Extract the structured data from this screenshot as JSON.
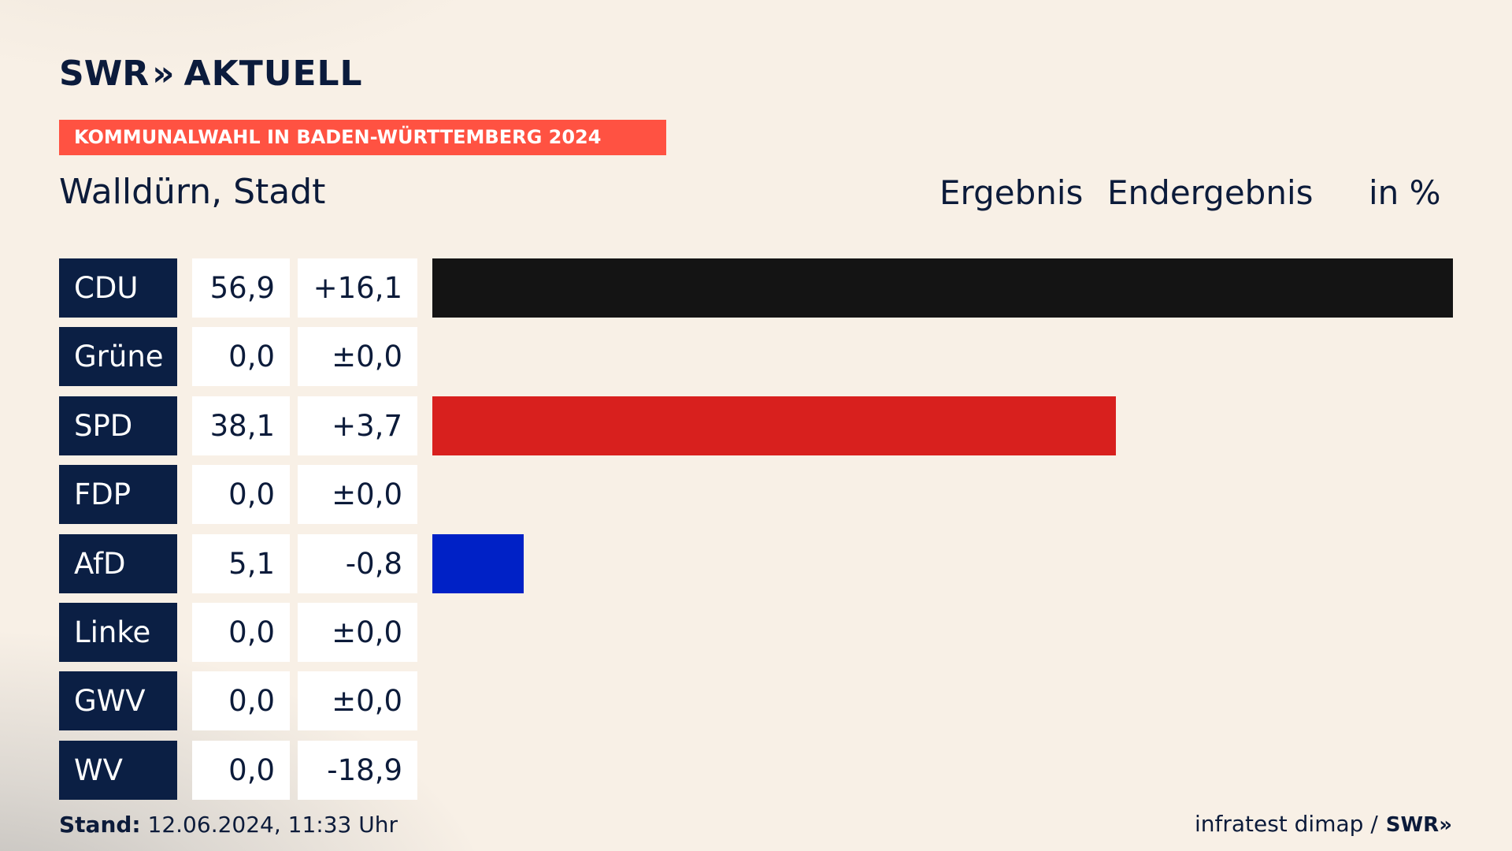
{
  "logo": {
    "brand": "SWR",
    "chevrons": "»",
    "product": "AKTUELL"
  },
  "banner": "KOMMUNALWAHL IN BADEN-WÜRTTEMBERG 2024",
  "place": "Walldürn, Stadt",
  "headers": {
    "result": "Ergebnis",
    "final": "Endergebnis",
    "unit": "in %"
  },
  "chart_data": {
    "type": "bar",
    "orientation": "horizontal",
    "categories": [
      "CDU",
      "Grüne",
      "SPD",
      "FDP",
      "AfD",
      "Linke",
      "GWV",
      "WV"
    ],
    "values": [
      56.9,
      0.0,
      38.1,
      0.0,
      5.1,
      0.0,
      0.0,
      0.0
    ],
    "value_labels": [
      "56,9",
      "0,0",
      "38,1",
      "0,0",
      "5,1",
      "0,0",
      "0,0",
      "0,0"
    ],
    "changes": [
      16.1,
      0.0,
      3.7,
      0.0,
      -0.8,
      0.0,
      0.0,
      -18.9
    ],
    "change_labels": [
      "+16,1",
      "±0,0",
      "+3,7",
      "±0,0",
      "-0,8",
      "±0,0",
      "±0,0",
      "-18,9"
    ],
    "colors": [
      "#141414",
      "#4d9f3a",
      "#d8201e",
      "#ffed00",
      "#0021c6",
      "#b3125e",
      "#6b7a8c",
      "#6b7a8c"
    ],
    "xlim": [
      0,
      56.9
    ]
  },
  "footer": {
    "stand_label": "Stand:",
    "stand_value": "12.06.2024, 11:33 Uhr",
    "source": "infratest dimap /",
    "source_logo": "SWR»"
  }
}
